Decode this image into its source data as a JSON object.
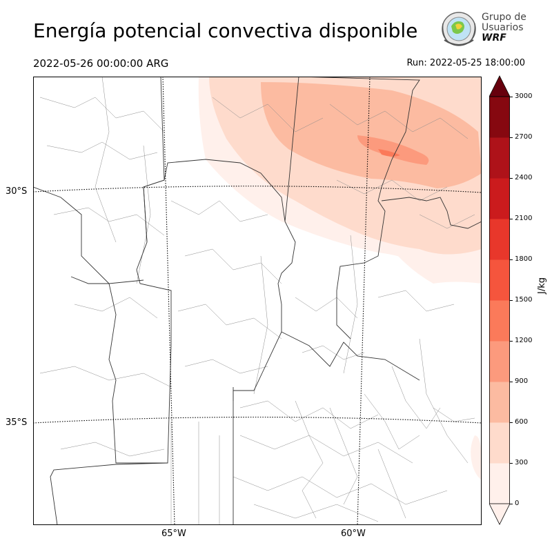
{
  "header": {
    "title": "Energía potencial convectiva disponible",
    "valid_time": "2022-05-26 00:00:00 ARG",
    "run_time": "Run: 2022-05-25 18:00:00"
  },
  "logo": {
    "line1": "Grupo de",
    "line2": "Usuarios",
    "line3": "WRF"
  },
  "map": {
    "lat_labels": [
      "30°S",
      "35°S"
    ],
    "lon_labels": [
      "65°W",
      "60°W"
    ]
  },
  "colorbar": {
    "unit": "J/kg",
    "ticks": [
      "0",
      "300",
      "600",
      "900",
      "1200",
      "1500",
      "1800",
      "2100",
      "2400",
      "2700",
      "3000"
    ],
    "colors": [
      "#fff0eb",
      "#fedbcc",
      "#fcbba1",
      "#fc9a7d",
      "#fb7a5a",
      "#f5553d",
      "#e8372b",
      "#cb1b1d",
      "#ae1219",
      "#860810",
      "#67000d"
    ],
    "extend": "both"
  }
}
